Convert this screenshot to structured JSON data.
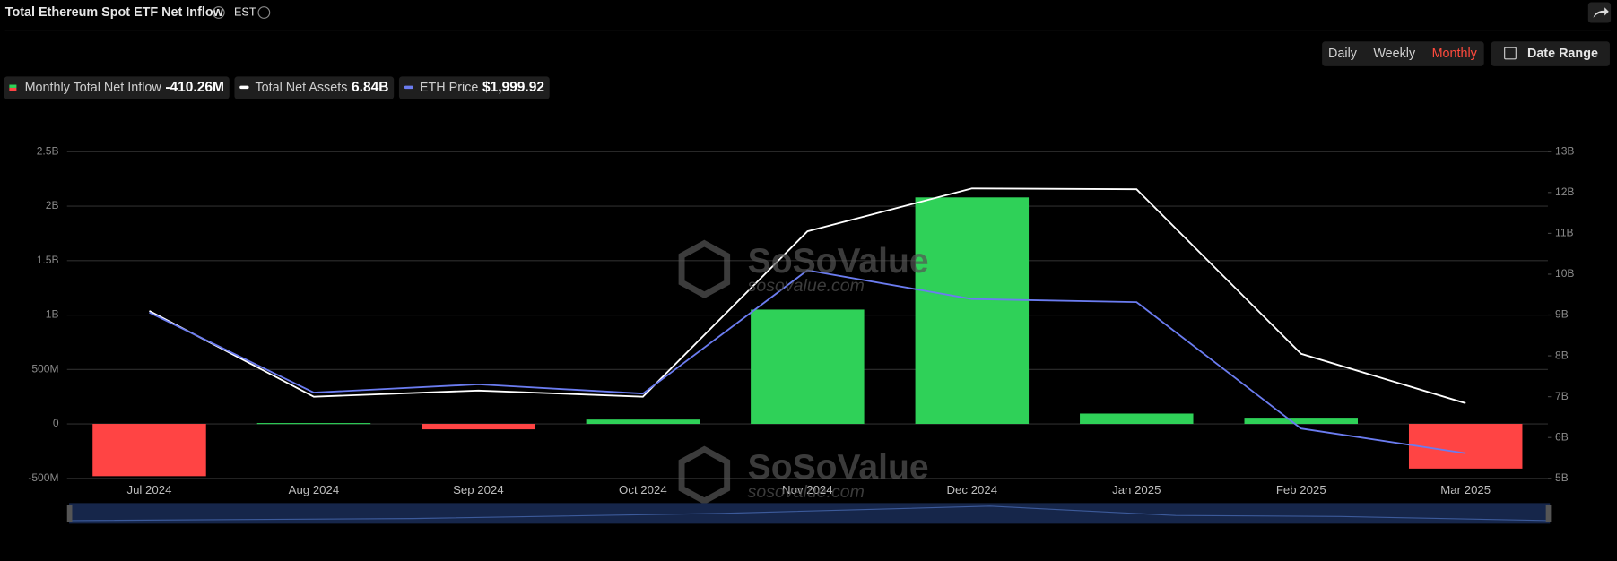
{
  "header": {
    "title": "Total Ethereum Spot ETF Net Inflow",
    "timezone": "EST",
    "buttons": [
      "Daily",
      "Weekly",
      "Monthly"
    ],
    "active_button": "Monthly",
    "date_range": "Date Range"
  },
  "watermark": {
    "brand": "SoSoValue",
    "url": "sosovalue.com"
  },
  "chart_data": {
    "type": "bar",
    "categories": [
      "Jul 2024",
      "Aug 2024",
      "Sep 2024",
      "Oct 2024",
      "Nov 2024",
      "Dec 2024",
      "Jan 2025",
      "Feb 2025",
      "Mar 2025"
    ],
    "series": [
      {
        "name": "Monthly Total Net Inflow",
        "type": "bar",
        "positive_color": "#2fd158",
        "negative_color": "#ff4444",
        "current_label": "-410.26M",
        "values": [
          -480000000,
          8000000,
          -50000000,
          40000000,
          1050000000,
          2080000000,
          95000000,
          57000000,
          -410260000
        ]
      },
      {
        "name": "Total Net Assets",
        "type": "line",
        "axis": "y2",
        "color": "#ffffff",
        "current_label": "6.84B",
        "values": [
          9100000000,
          7000000000,
          7150000000,
          7000000000,
          11050000000,
          12100000000,
          12080000000,
          8050000000,
          6840000000
        ]
      },
      {
        "name": "ETH Price",
        "type": "line",
        "axis": "y3",
        "color": "#6b7cf0",
        "current_label": "$1,999.92",
        "values": [
          3232,
          2531,
          2603,
          2522,
          3602,
          3350,
          3323,
          2216,
          1999.92
        ]
      }
    ],
    "ylim": [
      -500000000,
      2500000000
    ],
    "yticks": [
      {
        "value": -500000000,
        "label": "-500M"
      },
      0,
      {
        "value": 500000000,
        "label": "500M"
      },
      {
        "value": 1000000000,
        "label": "1B"
      },
      {
        "value": 1500000000,
        "label": "1.5B"
      },
      {
        "value": 2000000000,
        "label": "2B"
      },
      {
        "value": 2500000000,
        "label": "2.5B"
      }
    ],
    "y2lim": [
      5000000000,
      13000000000
    ],
    "y2ticks": [
      {
        "value": 5000000000,
        "label": "5B"
      },
      {
        "value": 6000000000,
        "label": "6B"
      },
      {
        "value": 7000000000,
        "label": "7B"
      },
      {
        "value": 8000000000,
        "label": "8B"
      },
      {
        "value": 9000000000,
        "label": "9B"
      },
      {
        "value": 10000000000,
        "label": "10B"
      },
      {
        "value": 11000000000,
        "label": "11B"
      },
      {
        "value": 12000000000,
        "label": "12B"
      },
      {
        "value": 13000000000,
        "label": "13B"
      }
    ],
    "y3lim": [
      1780,
      4640
    ],
    "grid": true
  }
}
